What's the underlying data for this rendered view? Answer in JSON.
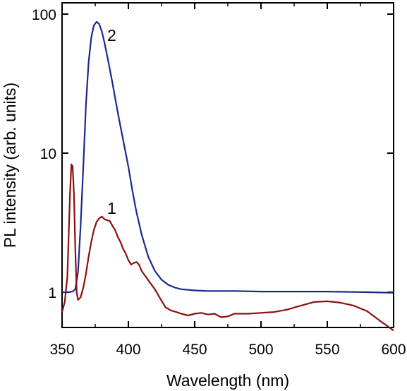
{
  "chart_data": {
    "type": "line",
    "title": "",
    "xlabel": "Wavelength (nm)",
    "ylabel": "PL intensity (arb. units)",
    "xlim": [
      350,
      600
    ],
    "ylim": [
      0.5,
      100
    ],
    "yscale": "log",
    "grid": false,
    "x_ticks": [
      350,
      400,
      450,
      500,
      550,
      600
    ],
    "y_ticks": [
      1,
      10,
      100
    ],
    "x_tick_labels": [
      "350",
      "400",
      "450",
      "500",
      "550",
      "600"
    ],
    "y_tick_labels": [
      "1",
      "10",
      "100"
    ],
    "series": [
      {
        "label": "2",
        "color": "#1a2a8c",
        "x": [
          350,
          355,
          358,
          360,
          362,
          364,
          366,
          368,
          370,
          372,
          374,
          376,
          378,
          380,
          382,
          385,
          388,
          390,
          393,
          396,
          400,
          403,
          406,
          410,
          415,
          420,
          425,
          430,
          435,
          440,
          450,
          460,
          480,
          500,
          520,
          550,
          580,
          600
        ],
        "y": [
          1.0,
          1.0,
          1.01,
          1.05,
          1.4,
          3.0,
          8.0,
          22.0,
          45.0,
          68.0,
          83.0,
          88.0,
          85.0,
          75.0,
          62.0,
          45.0,
          32.0,
          25.0,
          17.5,
          12.5,
          8.0,
          5.4,
          3.8,
          2.6,
          1.8,
          1.42,
          1.23,
          1.13,
          1.08,
          1.05,
          1.03,
          1.02,
          1.02,
          1.01,
          1.01,
          1.01,
          1.0,
          0.99
        ]
      },
      {
        "label": "1",
        "color": "#8b1010",
        "x": [
          350,
          352,
          354,
          356,
          357,
          358,
          359,
          360,
          361,
          362,
          364,
          366,
          368,
          370,
          372,
          374,
          376,
          378,
          380,
          382,
          384,
          386,
          388,
          390,
          392,
          394,
          396,
          398,
          400,
          402,
          404,
          406,
          408,
          410,
          413,
          416,
          420,
          424,
          428,
          432,
          436,
          440,
          445,
          450,
          455,
          460,
          465,
          470,
          475,
          480,
          490,
          500,
          510,
          520,
          530,
          540,
          550,
          560,
          570,
          580,
          590,
          600
        ],
        "y": [
          0.72,
          0.85,
          1.3,
          5.2,
          8.3,
          8.0,
          5.0,
          2.0,
          1.0,
          0.88,
          0.92,
          1.08,
          1.35,
          1.8,
          2.3,
          2.8,
          3.2,
          3.4,
          3.5,
          3.35,
          3.3,
          3.25,
          3.0,
          2.8,
          2.5,
          2.3,
          2.05,
          1.9,
          1.7,
          1.58,
          1.62,
          1.65,
          1.58,
          1.42,
          1.3,
          1.18,
          1.05,
          0.9,
          0.78,
          0.74,
          0.72,
          0.7,
          0.68,
          0.7,
          0.71,
          0.69,
          0.7,
          0.66,
          0.67,
          0.7,
          0.7,
          0.71,
          0.72,
          0.75,
          0.8,
          0.85,
          0.86,
          0.84,
          0.8,
          0.73,
          0.62,
          0.53
        ]
      }
    ]
  }
}
